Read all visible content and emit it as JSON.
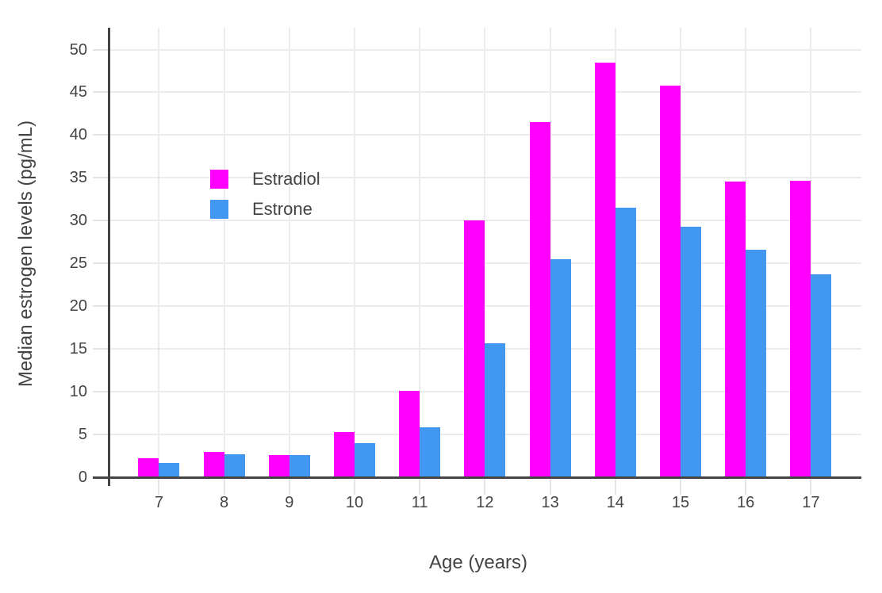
{
  "chart_data": {
    "type": "bar",
    "title": "",
    "categories": [
      "7",
      "8",
      "9",
      "10",
      "11",
      "12",
      "13",
      "14",
      "15",
      "16",
      "17"
    ],
    "series": [
      {
        "name": "Estradiol",
        "color": "#FF00FF",
        "values": [
          2.2,
          3.0,
          2.6,
          5.3,
          10.1,
          30.0,
          41.5,
          48.5,
          45.8,
          34.6,
          34.7
        ]
      },
      {
        "name": "Estrone",
        "color": "#4298F0",
        "values": [
          1.7,
          2.7,
          2.6,
          4.0,
          5.8,
          15.7,
          25.5,
          31.5,
          29.3,
          26.6,
          23.7
        ]
      }
    ],
    "xlabel": "Age (years)",
    "ylabel": "Median estrogen levels (pg/mL)",
    "ylim": [
      0,
      52.5
    ],
    "yticks": [
      0,
      5,
      10,
      15,
      20,
      25,
      30,
      35,
      40,
      45,
      50
    ],
    "grid": true,
    "legend_position": "inside-top-left"
  },
  "colors": {
    "background": "#FFFFFF",
    "text": "#444444",
    "gridline": "#ECECEC",
    "axis": "#444444"
  }
}
